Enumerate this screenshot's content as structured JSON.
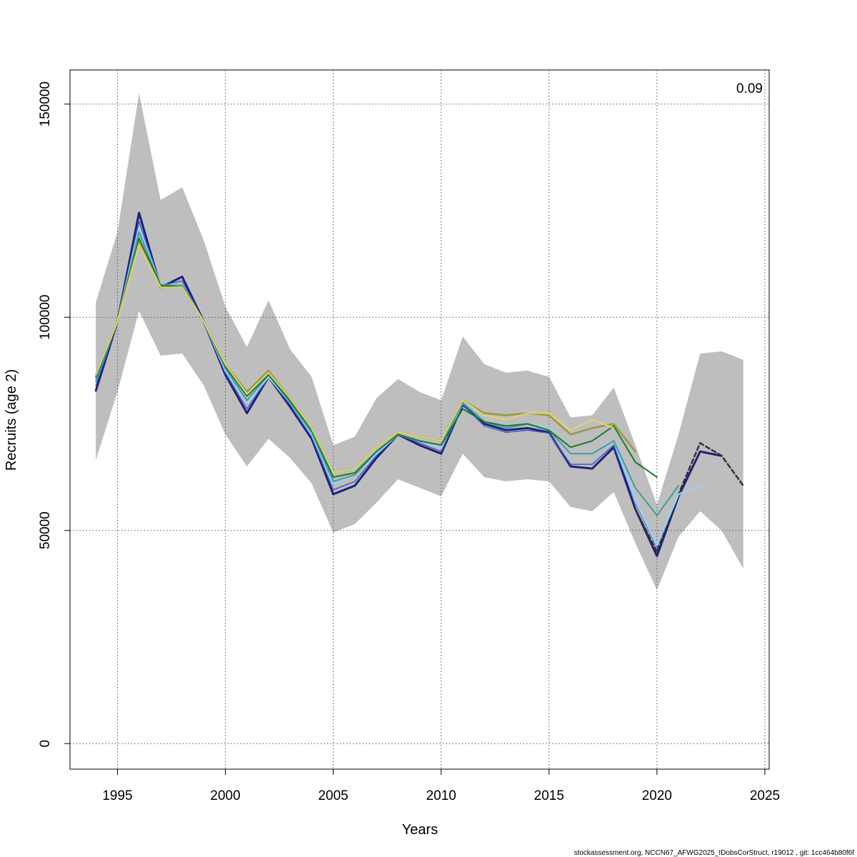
{
  "chart_data": {
    "type": "line",
    "xlabel": "Years",
    "ylabel": "Recruits (age 2)",
    "corner_label": "0.09",
    "footer": "stockassessment.org, NCCN67_AFWG2025_IDobsCorStruct, r19012 , git: 1cc464b80f6f",
    "xlim": [
      1992.8,
      2025.2
    ],
    "ylim": [
      -6000,
      158000
    ],
    "x_ticks": [
      1995,
      2000,
      2005,
      2010,
      2015,
      2020,
      2025
    ],
    "y_ticks": [
      0,
      50000,
      100000,
      150000
    ],
    "grid": true,
    "band_color": "#bebebe",
    "confidence_band": {
      "x": [
        1994,
        1995,
        1996,
        1997,
        1998,
        1999,
        2000,
        2001,
        2002,
        2003,
        2004,
        2005,
        2006,
        2007,
        2008,
        2009,
        2010,
        2011,
        2012,
        2013,
        2014,
        2015,
        2016,
        2017,
        2018,
        2019,
        2020,
        2021,
        2022,
        2023,
        2024
      ],
      "upper": [
        103500,
        120000,
        152500,
        127500,
        130500,
        118000,
        102500,
        93000,
        104000,
        92500,
        86000,
        70000,
        72000,
        81000,
        85500,
        82500,
        80500,
        95500,
        89000,
        87000,
        87500,
        86000,
        76500,
        77000,
        83500,
        70000,
        56000,
        72500,
        91500,
        92000,
        90000
      ],
      "lower": [
        66500,
        82500,
        101500,
        91000,
        91500,
        84000,
        72500,
        65000,
        71500,
        67000,
        61000,
        49500,
        51500,
        56500,
        62000,
        60000,
        58000,
        68000,
        62500,
        61500,
        62000,
        61500,
        55500,
        54500,
        59000,
        47000,
        36000,
        48500,
        54500,
        50000,
        41000
      ]
    },
    "series": [
      {
        "color": "#1f1f7a",
        "width": 3,
        "dash": false,
        "x": [
          1994,
          1995,
          1996,
          1997,
          1998,
          1999,
          2000,
          2001,
          2002,
          2003,
          2004,
          2005,
          2006,
          2007,
          2008,
          2009,
          2010,
          2011,
          2012,
          2013,
          2014,
          2015,
          2016,
          2017,
          2018,
          2019,
          2020,
          2021,
          2022,
          2023
        ],
        "values": [
          82800,
          99000,
          124500,
          107000,
          109500,
          99000,
          86500,
          77500,
          86000,
          79000,
          71500,
          58500,
          60500,
          67000,
          72500,
          70000,
          68000,
          79500,
          75000,
          73500,
          74000,
          73000,
          65000,
          64500,
          69500,
          55000,
          44000,
          58000,
          68500,
          67500
        ]
      },
      {
        "color": "#333333",
        "width": 2.5,
        "dash": true,
        "x": [
          2019,
          2020,
          2021,
          2022,
          2023,
          2024
        ],
        "values": [
          55000,
          45000,
          58500,
          70500,
          67500,
          60500
        ]
      },
      {
        "color": "#3c5cc8",
        "width": 1.5,
        "dash": false,
        "x": [
          1994,
          1995,
          1996,
          1997,
          1998,
          1999,
          2000,
          2001,
          2002,
          2003,
          2004,
          2005,
          2006,
          2007,
          2008,
          2009,
          2010,
          2011,
          2012,
          2013,
          2014,
          2015,
          2016,
          2017,
          2018,
          2019,
          2020,
          2021,
          2022
        ],
        "values": [
          84000,
          99000,
          122500,
          107500,
          108500,
          99000,
          87000,
          78500,
          86000,
          79500,
          72000,
          59500,
          61500,
          67500,
          72500,
          70500,
          68500,
          79500,
          74500,
          73000,
          73500,
          72800,
          65500,
          65500,
          70000,
          56500,
          46000,
          58500,
          60500
        ]
      },
      {
        "color": "#9ad2ee",
        "width": 2.5,
        "dash": false,
        "x": [
          1994,
          1995,
          1996,
          1997,
          1998,
          1999,
          2000,
          2001,
          2002,
          2003,
          2004,
          2005,
          2006,
          2007,
          2008,
          2009,
          2010,
          2011,
          2012,
          2013,
          2014,
          2015,
          2016,
          2017,
          2018,
          2019,
          2020,
          2021,
          2022
        ],
        "values": [
          85500,
          99000,
          121000,
          107500,
          107500,
          99000,
          87500,
          80000,
          86000,
          80000,
          72500,
          61000,
          63000,
          68000,
          72500,
          71000,
          69500,
          80000,
          75500,
          74500,
          75000,
          74000,
          68000,
          68000,
          71000,
          57000,
          46500,
          58500,
          60500
        ]
      },
      {
        "color": "#3c9e9e",
        "width": 2,
        "dash": false,
        "x": [
          1994,
          1995,
          1996,
          1997,
          1998,
          1999,
          2000,
          2001,
          2002,
          2003,
          2004,
          2005,
          2006,
          2007,
          2008,
          2009,
          2010,
          2011,
          2012,
          2013,
          2014,
          2015,
          2016,
          2017,
          2018,
          2019,
          2020,
          2021
        ],
        "values": [
          85000,
          99000,
          120000,
          107500,
          107500,
          99000,
          88000,
          80500,
          86500,
          80000,
          73000,
          61500,
          63000,
          68500,
          72500,
          71000,
          70000,
          80000,
          75500,
          74000,
          75000,
          73500,
          68000,
          68000,
          71000,
          60000,
          53500,
          60500
        ]
      },
      {
        "color": "#1a7a2e",
        "width": 2,
        "dash": false,
        "x": [
          1994,
          1995,
          1996,
          1997,
          1998,
          1999,
          2000,
          2001,
          2002,
          2003,
          2004,
          2005,
          2006,
          2007,
          2008,
          2009,
          2010,
          2011,
          2012,
          2013,
          2014,
          2015,
          2016,
          2017,
          2018,
          2019,
          2020
        ],
        "values": [
          86000,
          99000,
          118500,
          107500,
          107000,
          99000,
          88500,
          81500,
          86500,
          80500,
          73500,
          62500,
          63500,
          68500,
          72500,
          71000,
          70000,
          78500,
          75500,
          74500,
          75000,
          73500,
          69500,
          71000,
          74500,
          66000,
          62500
        ]
      },
      {
        "color": "#9a9a3c",
        "width": 2.5,
        "dash": false,
        "x": [
          1994,
          1995,
          1996,
          1997,
          1998,
          1999,
          2000,
          2001,
          2002,
          2003,
          2004,
          2005,
          2006,
          2007,
          2008,
          2009,
          2010,
          2011,
          2012,
          2013,
          2014,
          2015,
          2016,
          2017,
          2018,
          2019
        ],
        "values": [
          86500,
          99000,
          117500,
          107000,
          107000,
          99000,
          89000,
          82500,
          87500,
          81000,
          74000,
          63500,
          64500,
          69500,
          73000,
          72000,
          71000,
          80500,
          77500,
          77000,
          77500,
          77000,
          72500,
          74000,
          75000,
          68500
        ]
      },
      {
        "color": "#e2d46e",
        "width": 2,
        "dash": false,
        "x": [
          1994,
          1995,
          1996,
          1997,
          1998,
          1999,
          2000,
          2001,
          2002,
          2003,
          2004,
          2005,
          2006,
          2007,
          2008,
          2009,
          2010,
          2011,
          2012,
          2013,
          2014,
          2015,
          2016,
          2017,
          2018
        ],
        "values": [
          86500,
          99000,
          117000,
          107000,
          107000,
          99000,
          89000,
          82000,
          87000,
          81000,
          74000,
          63500,
          64500,
          69500,
          73000,
          72000,
          71000,
          80500,
          77000,
          76000,
          77500,
          77500,
          73500,
          76000,
          74000
        ]
      }
    ]
  }
}
